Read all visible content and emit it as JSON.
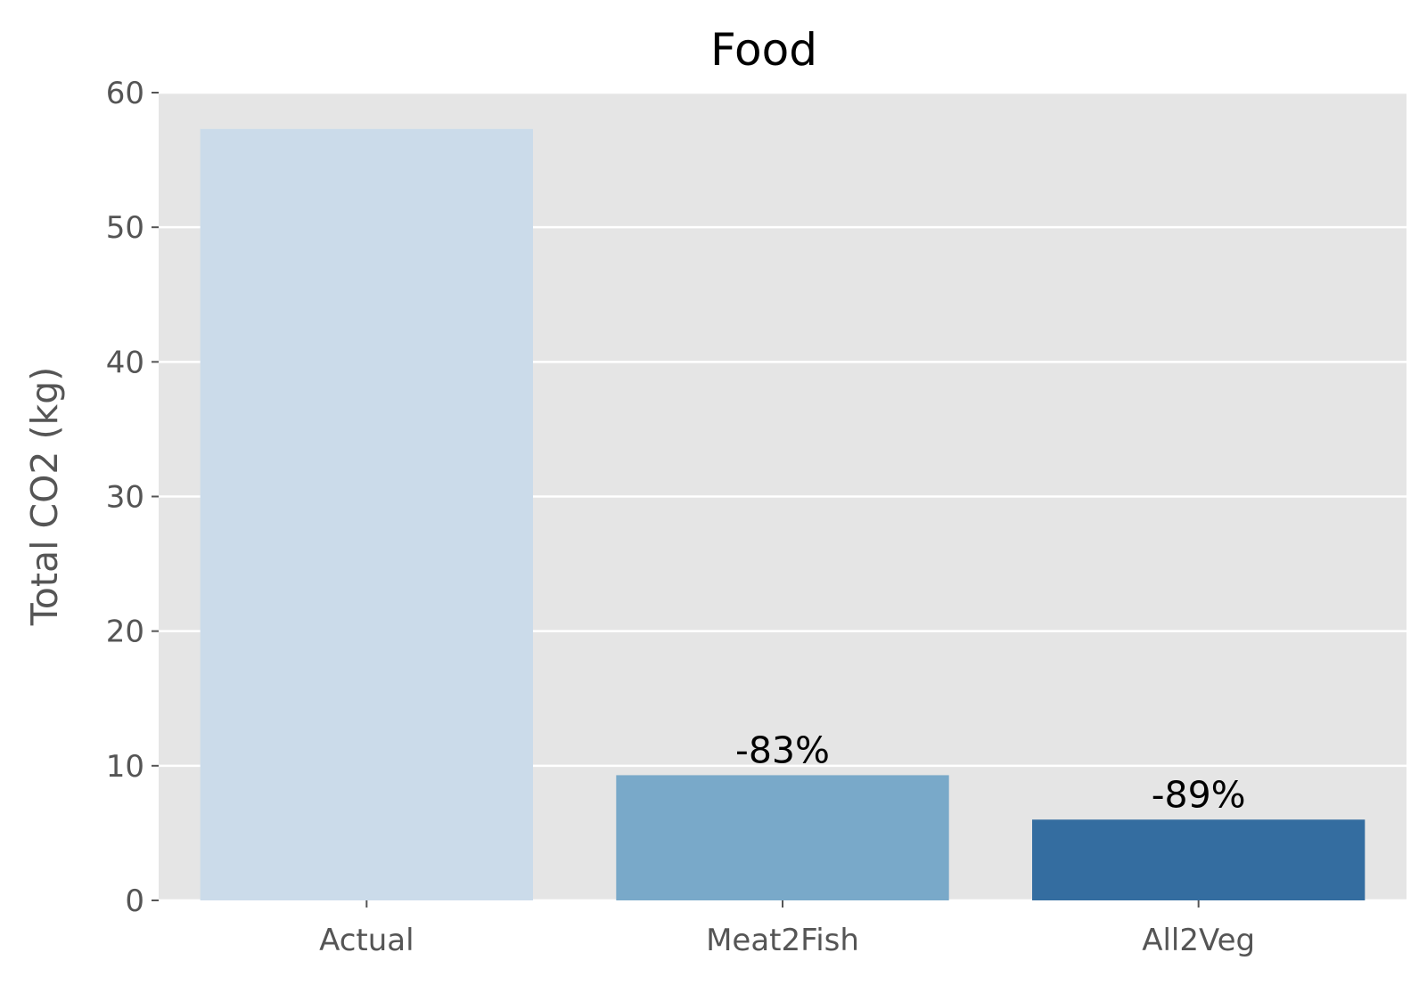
{
  "chart_data": {
    "type": "bar",
    "title": "Food",
    "xlabel": "",
    "ylabel": "Total CO2 (kg)",
    "categories": [
      "Actual",
      "Meat2Fish",
      "All2Veg"
    ],
    "values": [
      57.3,
      9.3,
      6.0
    ],
    "colors": [
      "#cbdbea",
      "#79a9c9",
      "#346da0"
    ],
    "data_labels": [
      "",
      "-83%",
      "-89%"
    ],
    "ylim": [
      0,
      60
    ],
    "yticks": [
      0,
      10,
      20,
      30,
      40,
      50,
      60
    ],
    "grid": true,
    "style": {
      "plot_background": "#e5e5e5",
      "grid_color": "#ffffff"
    }
  }
}
